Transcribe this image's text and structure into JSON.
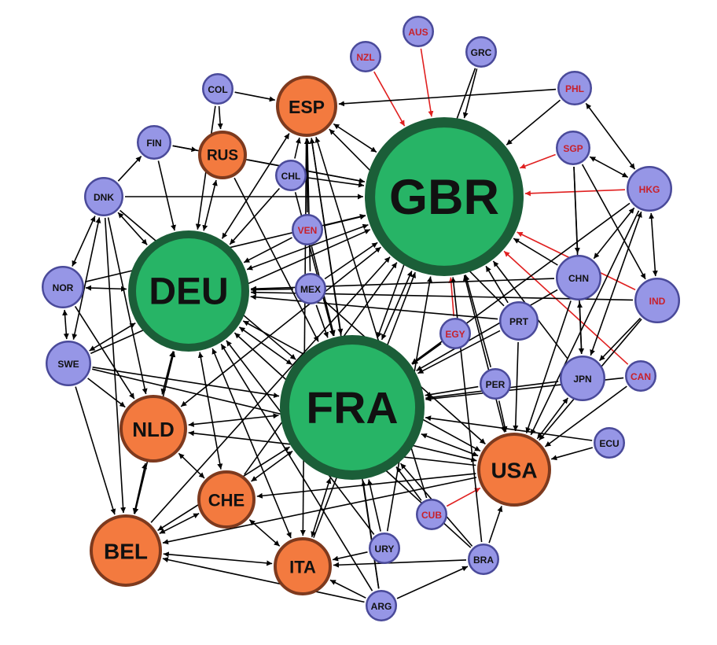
{
  "colors": {
    "hub_fill": "#27b466",
    "hub_stroke": "#1b5e38",
    "major_fill": "#f37a3f",
    "major_stroke": "#7e3a1e",
    "minor_fill": "#9696e6",
    "minor_stroke": "#4a4a9a",
    "edge": "#000000",
    "highlight_edge": "#e02020",
    "label_dark": "#111111",
    "label_red": "#c8202a"
  },
  "nodes": [
    {
      "id": "GBR",
      "label": "GBR",
      "type": "hub"
    },
    {
      "id": "FRA",
      "label": "FRA",
      "type": "hub"
    },
    {
      "id": "DEU",
      "label": "DEU",
      "type": "hub"
    },
    {
      "id": "ESP",
      "label": "ESP",
      "type": "major"
    },
    {
      "id": "RUS",
      "label": "RUS",
      "type": "major"
    },
    {
      "id": "NLD",
      "label": "NLD",
      "type": "major"
    },
    {
      "id": "CHE",
      "label": "CHE",
      "type": "major"
    },
    {
      "id": "BEL",
      "label": "BEL",
      "type": "major"
    },
    {
      "id": "ITA",
      "label": "ITA",
      "type": "major"
    },
    {
      "id": "USA",
      "label": "USA",
      "type": "major"
    },
    {
      "id": "NZL",
      "label": "NZL",
      "type": "minor",
      "red": true
    },
    {
      "id": "AUS",
      "label": "AUS",
      "type": "minor",
      "red": true
    },
    {
      "id": "GRC",
      "label": "GRC",
      "type": "minor"
    },
    {
      "id": "PHL",
      "label": "PHL",
      "type": "minor",
      "red": true
    },
    {
      "id": "COL",
      "label": "COL",
      "type": "minor"
    },
    {
      "id": "FIN",
      "label": "FIN",
      "type": "minor"
    },
    {
      "id": "CHL",
      "label": "CHL",
      "type": "minor"
    },
    {
      "id": "SGP",
      "label": "SGP",
      "type": "minor",
      "red": true
    },
    {
      "id": "HKG",
      "label": "HKG",
      "type": "minor",
      "red": true
    },
    {
      "id": "DNK",
      "label": "DNK",
      "type": "minor"
    },
    {
      "id": "VEN",
      "label": "VEN",
      "type": "minor",
      "red": true
    },
    {
      "id": "CHN",
      "label": "CHN",
      "type": "minor"
    },
    {
      "id": "IND",
      "label": "IND",
      "type": "minor",
      "red": true
    },
    {
      "id": "NOR",
      "label": "NOR",
      "type": "minor"
    },
    {
      "id": "MEX",
      "label": "MEX",
      "type": "minor"
    },
    {
      "id": "PRT",
      "label": "PRT",
      "type": "minor"
    },
    {
      "id": "EGY",
      "label": "EGY",
      "type": "minor",
      "red": true
    },
    {
      "id": "SWE",
      "label": "SWE",
      "type": "minor"
    },
    {
      "id": "JPN",
      "label": "JPN",
      "type": "minor"
    },
    {
      "id": "CAN",
      "label": "CAN",
      "type": "minor",
      "red": true
    },
    {
      "id": "PER",
      "label": "PER",
      "type": "minor"
    },
    {
      "id": "ECU",
      "label": "ECU",
      "type": "minor"
    },
    {
      "id": "CUB",
      "label": "CUB",
      "type": "minor",
      "red": true
    },
    {
      "id": "URY",
      "label": "URY",
      "type": "minor"
    },
    {
      "id": "BRA",
      "label": "BRA",
      "type": "minor"
    },
    {
      "id": "ARG",
      "label": "ARG",
      "type": "minor"
    }
  ],
  "edges": [
    {
      "from": "NZL",
      "to": "GBR",
      "red": true
    },
    {
      "from": "AUS",
      "to": "GBR",
      "red": true
    },
    {
      "from": "SGP",
      "to": "GBR",
      "red": true
    },
    {
      "from": "HKG",
      "to": "GBR",
      "red": true
    },
    {
      "from": "IND",
      "to": "GBR",
      "red": true
    },
    {
      "from": "CAN",
      "to": "GBR",
      "red": true
    },
    {
      "from": "EGY",
      "to": "GBR",
      "red": true
    },
    {
      "from": "CUB",
      "to": "USA",
      "red": true
    },
    {
      "from": "GRC",
      "to": "GBR"
    },
    {
      "from": "GRC",
      "to": "FRA"
    },
    {
      "from": "PHL",
      "to": "ESP"
    },
    {
      "from": "PHL",
      "to": "GBR"
    },
    {
      "from": "PHL",
      "to": "HKG",
      "bi": true
    },
    {
      "from": "COL",
      "to": "ESP"
    },
    {
      "from": "COL",
      "to": "RUS"
    },
    {
      "from": "COL",
      "to": "DEU"
    },
    {
      "from": "FIN",
      "to": "RUS"
    },
    {
      "from": "FIN",
      "to": "DEU"
    },
    {
      "from": "FIN",
      "to": "GBR"
    },
    {
      "from": "DNK",
      "to": "FIN"
    },
    {
      "from": "DNK",
      "to": "DEU",
      "bi": true
    },
    {
      "from": "DNK",
      "to": "GBR"
    },
    {
      "from": "DNK",
      "to": "NOR",
      "bi": true
    },
    {
      "from": "DNK",
      "to": "SWE",
      "bi": true
    },
    {
      "from": "DNK",
      "to": "NLD"
    },
    {
      "from": "DNK",
      "to": "BEL"
    },
    {
      "from": "DNK",
      "to": "FRA"
    },
    {
      "from": "CHL",
      "to": "GBR"
    },
    {
      "from": "CHL",
      "to": "ESP"
    },
    {
      "from": "CHL",
      "to": "DEU"
    },
    {
      "from": "CHL",
      "to": "FRA"
    },
    {
      "from": "RUS",
      "to": "DEU",
      "bi": true
    },
    {
      "from": "RUS",
      "to": "GBR"
    },
    {
      "from": "RUS",
      "to": "FRA"
    },
    {
      "from": "ESP",
      "to": "GBR",
      "bi": true
    },
    {
      "from": "ESP",
      "to": "FRA",
      "bi": true
    },
    {
      "from": "ESP",
      "to": "DEU",
      "bi": true
    },
    {
      "from": "ESP",
      "to": "ITA"
    },
    {
      "from": "VEN",
      "to": "ESP"
    },
    {
      "from": "VEN",
      "to": "GBR"
    },
    {
      "from": "VEN",
      "to": "DEU"
    },
    {
      "from": "VEN",
      "to": "FRA"
    },
    {
      "from": "MEX",
      "to": "ESP"
    },
    {
      "from": "MEX",
      "to": "GBR"
    },
    {
      "from": "MEX",
      "to": "DEU"
    },
    {
      "from": "MEX",
      "to": "FRA"
    },
    {
      "from": "MEX",
      "to": "USA"
    },
    {
      "from": "SGP",
      "to": "CHN"
    },
    {
      "from": "SGP",
      "to": "HKG",
      "bi": true
    },
    {
      "from": "SGP",
      "to": "IND"
    },
    {
      "from": "SGP",
      "to": "JPN"
    },
    {
      "from": "HKG",
      "to": "CHN",
      "bi": true
    },
    {
      "from": "HKG",
      "to": "IND",
      "bi": true
    },
    {
      "from": "HKG",
      "to": "JPN",
      "bi": true
    },
    {
      "from": "HKG",
      "to": "USA"
    },
    {
      "from": "HKG",
      "to": "FRA"
    },
    {
      "from": "CHN",
      "to": "GBR"
    },
    {
      "from": "CHN",
      "to": "JPN",
      "bi": true
    },
    {
      "from": "CHN",
      "to": "USA"
    },
    {
      "from": "CHN",
      "to": "DEU"
    },
    {
      "from": "CHN",
      "to": "FRA"
    },
    {
      "from": "IND",
      "to": "USA"
    },
    {
      "from": "IND",
      "to": "DEU"
    },
    {
      "from": "IND",
      "to": "JPN"
    },
    {
      "from": "NOR",
      "to": "SWE",
      "bi": true
    },
    {
      "from": "NOR",
      "to": "DEU",
      "bi": true
    },
    {
      "from": "NOR",
      "to": "GBR"
    },
    {
      "from": "NOR",
      "to": "NLD"
    },
    {
      "from": "SWE",
      "to": "DEU",
      "bi": true
    },
    {
      "from": "SWE",
      "to": "GBR"
    },
    {
      "from": "SWE",
      "to": "FRA"
    },
    {
      "from": "SWE",
      "to": "NLD"
    },
    {
      "from": "SWE",
      "to": "BEL"
    },
    {
      "from": "SWE",
      "to": "USA"
    },
    {
      "from": "PRT",
      "to": "GBR"
    },
    {
      "from": "PRT",
      "to": "FRA"
    },
    {
      "from": "PRT",
      "to": "DEU"
    },
    {
      "from": "PRT",
      "to": "USA"
    },
    {
      "from": "PRT",
      "to": "ESP"
    },
    {
      "from": "EGY",
      "to": "FRA"
    },
    {
      "from": "JPN",
      "to": "USA",
      "bi": true
    },
    {
      "from": "JPN",
      "to": "GBR"
    },
    {
      "from": "JPN",
      "to": "FRA"
    },
    {
      "from": "CAN",
      "to": "USA"
    },
    {
      "from": "CAN",
      "to": "FRA"
    },
    {
      "from": "PER",
      "to": "FRA"
    },
    {
      "from": "PER",
      "to": "USA"
    },
    {
      "from": "PER",
      "to": "GBR"
    },
    {
      "from": "ECU",
      "to": "USA"
    },
    {
      "from": "ECU",
      "to": "FRA"
    },
    {
      "from": "USA",
      "to": "GBR",
      "bi": true
    },
    {
      "from": "USA",
      "to": "FRA",
      "bi": true
    },
    {
      "from": "USA",
      "to": "DEU",
      "bi": true
    },
    {
      "from": "USA",
      "to": "NLD"
    },
    {
      "from": "USA",
      "to": "CHE"
    },
    {
      "from": "USA",
      "to": "BEL"
    },
    {
      "from": "CUB",
      "to": "ESP"
    },
    {
      "from": "CUB",
      "to": "FRA"
    },
    {
      "from": "BRA",
      "to": "USA"
    },
    {
      "from": "BRA",
      "to": "FRA"
    },
    {
      "from": "BRA",
      "to": "GBR"
    },
    {
      "from": "BRA",
      "to": "ITA"
    },
    {
      "from": "BRA",
      "to": "DEU"
    },
    {
      "from": "URY",
      "to": "FRA"
    },
    {
      "from": "URY",
      "to": "GBR"
    },
    {
      "from": "URY",
      "to": "ITA"
    },
    {
      "from": "URY",
      "to": "DEU"
    },
    {
      "from": "ARG",
      "to": "ITA"
    },
    {
      "from": "ARG",
      "to": "BRA"
    },
    {
      "from": "ARG",
      "to": "FRA"
    },
    {
      "from": "ARG",
      "to": "DEU"
    },
    {
      "from": "ARG",
      "to": "BEL"
    },
    {
      "from": "ARG",
      "to": "ESP"
    },
    {
      "from": "ITA",
      "to": "FRA",
      "bi": true
    },
    {
      "from": "ITA",
      "to": "DEU",
      "bi": true
    },
    {
      "from": "ITA",
      "to": "GBR"
    },
    {
      "from": "ITA",
      "to": "BEL",
      "bi": true
    },
    {
      "from": "ITA",
      "to": "CHE",
      "bi": true
    },
    {
      "from": "CHE",
      "to": "FRA",
      "bi": true
    },
    {
      "from": "CHE",
      "to": "DEU",
      "bi": true
    },
    {
      "from": "CHE",
      "to": "GBR"
    },
    {
      "from": "CHE",
      "to": "BEL",
      "bi": true
    },
    {
      "from": "CHE",
      "to": "NLD",
      "bi": true
    },
    {
      "from": "NLD",
      "to": "DEU",
      "bi": true
    },
    {
      "from": "NLD",
      "to": "FRA",
      "bi": true
    },
    {
      "from": "NLD",
      "to": "GBR",
      "bi": true
    },
    {
      "from": "NLD",
      "to": "BEL",
      "bi": true
    },
    {
      "from": "BEL",
      "to": "FRA",
      "bi": true
    },
    {
      "from": "BEL",
      "to": "DEU",
      "bi": true
    },
    {
      "from": "BEL",
      "to": "GBR"
    },
    {
      "from": "DEU",
      "to": "GBR",
      "bi": true
    },
    {
      "from": "DEU",
      "to": "FRA",
      "bi": true
    },
    {
      "from": "FRA",
      "to": "GBR",
      "bi": true
    }
  ]
}
